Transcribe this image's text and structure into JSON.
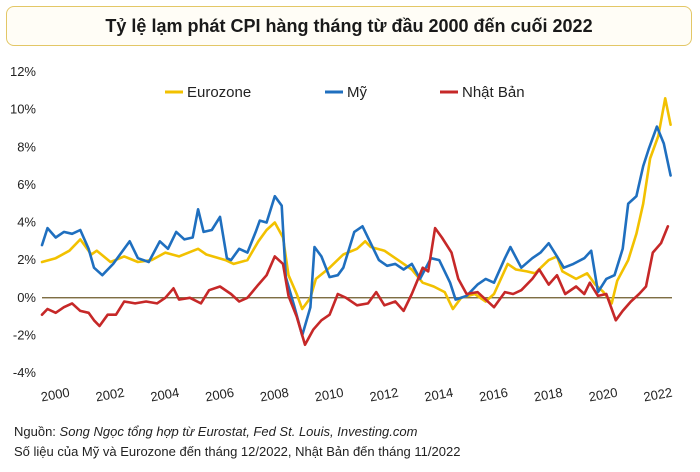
{
  "title": "Tỷ lệ lạm phát CPI hàng tháng từ đầu 2000 đến cuối 2022",
  "source_prefix": "Nguồn:",
  "source_text": "Song Ngọc tổng hợp từ Eurostat, Fed St. Louis, Investing.com",
  "note": "Số liệu của Mỹ và Eurozone đến tháng 12/2022, Nhật Bản đến tháng 11/2022",
  "chart_data": {
    "type": "line",
    "ylim": [
      -4,
      12
    ],
    "yticks": [
      "-4%",
      "-2%",
      "0%",
      "2%",
      "4%",
      "6%",
      "8%",
      "10%",
      "12%"
    ],
    "ytick_values": [
      -4,
      -2,
      0,
      2,
      4,
      6,
      8,
      10,
      12
    ],
    "xticks": [
      "2000",
      "2002",
      "2004",
      "2006",
      "2008",
      "2010",
      "2012",
      "2014",
      "2016",
      "2018",
      "2020",
      "2022"
    ],
    "xtick_values": [
      2000,
      2002,
      2004,
      2006,
      2008,
      2010,
      2012,
      2014,
      2016,
      2018,
      2020,
      2022
    ],
    "xlim": [
      2000,
      2023
    ],
    "legend_position": "top",
    "series": [
      {
        "name": "Eurozone",
        "color": "#f2c100",
        "points": [
          [
            2000,
            1.9
          ],
          [
            2000.5,
            2.1
          ],
          [
            2001,
            2.5
          ],
          [
            2001.4,
            3.1
          ],
          [
            2001.8,
            2.3
          ],
          [
            2002,
            2.5
          ],
          [
            2002.5,
            1.9
          ],
          [
            2003,
            2.2
          ],
          [
            2003.5,
            1.9
          ],
          [
            2004,
            2.0
          ],
          [
            2004.5,
            2.4
          ],
          [
            2005,
            2.2
          ],
          [
            2005.7,
            2.6
          ],
          [
            2006,
            2.3
          ],
          [
            2006.7,
            2.0
          ],
          [
            2007,
            1.8
          ],
          [
            2007.5,
            2.0
          ],
          [
            2007.9,
            3.0
          ],
          [
            2008.2,
            3.6
          ],
          [
            2008.5,
            4.0
          ],
          [
            2008.8,
            3.2
          ],
          [
            2009,
            1.2
          ],
          [
            2009.3,
            0.2
          ],
          [
            2009.5,
            -0.6
          ],
          [
            2009.8,
            0.0
          ],
          [
            2010,
            1.0
          ],
          [
            2010.5,
            1.6
          ],
          [
            2011,
            2.3
          ],
          [
            2011.5,
            2.6
          ],
          [
            2011.8,
            3.0
          ],
          [
            2012,
            2.7
          ],
          [
            2012.5,
            2.5
          ],
          [
            2013,
            2.0
          ],
          [
            2013.5,
            1.5
          ],
          [
            2013.9,
            0.8
          ],
          [
            2014.3,
            0.6
          ],
          [
            2014.7,
            0.3
          ],
          [
            2015,
            -0.6
          ],
          [
            2015.3,
            0.0
          ],
          [
            2015.8,
            0.2
          ],
          [
            2016.2,
            -0.2
          ],
          [
            2016.5,
            0.2
          ],
          [
            2017,
            1.8
          ],
          [
            2017.3,
            1.5
          ],
          [
            2017.7,
            1.4
          ],
          [
            2018,
            1.3
          ],
          [
            2018.5,
            2.0
          ],
          [
            2018.8,
            2.2
          ],
          [
            2019,
            1.4
          ],
          [
            2019.5,
            1.0
          ],
          [
            2019.9,
            1.3
          ],
          [
            2020.2,
            0.7
          ],
          [
            2020.5,
            0.3
          ],
          [
            2020.8,
            -0.3
          ],
          [
            2021,
            0.9
          ],
          [
            2021.4,
            2.0
          ],
          [
            2021.7,
            3.4
          ],
          [
            2021.95,
            5.0
          ],
          [
            2022.2,
            7.4
          ],
          [
            2022.5,
            8.6
          ],
          [
            2022.75,
            10.6
          ],
          [
            2022.95,
            9.2
          ]
        ]
      },
      {
        "name": "Mỹ",
        "color": "#1f6fbf",
        "points": [
          [
            2000,
            2.8
          ],
          [
            2000.2,
            3.7
          ],
          [
            2000.5,
            3.2
          ],
          [
            2000.8,
            3.5
          ],
          [
            2001.1,
            3.4
          ],
          [
            2001.4,
            3.6
          ],
          [
            2001.7,
            2.6
          ],
          [
            2001.9,
            1.6
          ],
          [
            2002.2,
            1.2
          ],
          [
            2002.6,
            1.8
          ],
          [
            2002.9,
            2.4
          ],
          [
            2003.2,
            3.0
          ],
          [
            2003.5,
            2.1
          ],
          [
            2003.9,
            1.9
          ],
          [
            2004.3,
            3.0
          ],
          [
            2004.6,
            2.6
          ],
          [
            2004.9,
            3.5
          ],
          [
            2005.2,
            3.1
          ],
          [
            2005.5,
            3.2
          ],
          [
            2005.7,
            4.7
          ],
          [
            2005.9,
            3.5
          ],
          [
            2006.2,
            3.6
          ],
          [
            2006.5,
            4.3
          ],
          [
            2006.75,
            2.1
          ],
          [
            2006.9,
            2.0
          ],
          [
            2007.2,
            2.6
          ],
          [
            2007.5,
            2.4
          ],
          [
            2007.8,
            3.5
          ],
          [
            2007.95,
            4.1
          ],
          [
            2008.2,
            4.0
          ],
          [
            2008.5,
            5.4
          ],
          [
            2008.75,
            4.9
          ],
          [
            2008.9,
            1.1
          ],
          [
            2009.2,
            -0.4
          ],
          [
            2009.5,
            -2.0
          ],
          [
            2009.8,
            -0.5
          ],
          [
            2009.95,
            2.7
          ],
          [
            2010.2,
            2.2
          ],
          [
            2010.5,
            1.1
          ],
          [
            2010.8,
            1.2
          ],
          [
            2011,
            1.6
          ],
          [
            2011.4,
            3.5
          ],
          [
            2011.7,
            3.8
          ],
          [
            2012,
            2.9
          ],
          [
            2012.3,
            2.0
          ],
          [
            2012.6,
            1.7
          ],
          [
            2012.9,
            1.8
          ],
          [
            2013.2,
            1.5
          ],
          [
            2013.5,
            1.8
          ],
          [
            2013.8,
            1.0
          ],
          [
            2014.2,
            2.1
          ],
          [
            2014.5,
            2.0
          ],
          [
            2014.9,
            0.8
          ],
          [
            2015.1,
            -0.1
          ],
          [
            2015.5,
            0.1
          ],
          [
            2015.9,
            0.7
          ],
          [
            2016.2,
            1.0
          ],
          [
            2016.5,
            0.8
          ],
          [
            2016.9,
            2.1
          ],
          [
            2017.1,
            2.7
          ],
          [
            2017.5,
            1.6
          ],
          [
            2017.9,
            2.1
          ],
          [
            2018.2,
            2.4
          ],
          [
            2018.5,
            2.9
          ],
          [
            2018.8,
            2.2
          ],
          [
            2019.05,
            1.6
          ],
          [
            2019.4,
            1.8
          ],
          [
            2019.8,
            2.1
          ],
          [
            2020.05,
            2.5
          ],
          [
            2020.3,
            0.3
          ],
          [
            2020.6,
            1.0
          ],
          [
            2020.9,
            1.2
          ],
          [
            2021.2,
            2.6
          ],
          [
            2021.4,
            5.0
          ],
          [
            2021.7,
            5.4
          ],
          [
            2021.95,
            7.0
          ],
          [
            2022.15,
            7.9
          ],
          [
            2022.45,
            9.1
          ],
          [
            2022.7,
            8.2
          ],
          [
            2022.95,
            6.5
          ]
        ]
      },
      {
        "name": "Nhật Bản",
        "color": "#c62828",
        "points": [
          [
            2000,
            -0.9
          ],
          [
            2000.2,
            -0.6
          ],
          [
            2000.5,
            -0.8
          ],
          [
            2000.8,
            -0.5
          ],
          [
            2001.1,
            -0.3
          ],
          [
            2001.4,
            -0.7
          ],
          [
            2001.7,
            -0.8
          ],
          [
            2001.9,
            -1.2
          ],
          [
            2002.1,
            -1.5
          ],
          [
            2002.4,
            -0.9
          ],
          [
            2002.7,
            -0.9
          ],
          [
            2003,
            -0.2
          ],
          [
            2003.4,
            -0.3
          ],
          [
            2003.8,
            -0.2
          ],
          [
            2004.2,
            -0.3
          ],
          [
            2004.5,
            0.0
          ],
          [
            2004.8,
            0.5
          ],
          [
            2005,
            -0.1
          ],
          [
            2005.4,
            0.0
          ],
          [
            2005.8,
            -0.3
          ],
          [
            2006.1,
            0.4
          ],
          [
            2006.5,
            0.6
          ],
          [
            2006.9,
            0.2
          ],
          [
            2007.2,
            -0.2
          ],
          [
            2007.5,
            0.0
          ],
          [
            2007.9,
            0.7
          ],
          [
            2008.2,
            1.2
          ],
          [
            2008.5,
            2.2
          ],
          [
            2008.8,
            1.8
          ],
          [
            2009,
            0.1
          ],
          [
            2009.3,
            -1.0
          ],
          [
            2009.6,
            -2.5
          ],
          [
            2009.9,
            -1.7
          ],
          [
            2010.2,
            -1.2
          ],
          [
            2010.5,
            -0.9
          ],
          [
            2010.8,
            0.2
          ],
          [
            2011.1,
            0.0
          ],
          [
            2011.5,
            -0.4
          ],
          [
            2011.9,
            -0.3
          ],
          [
            2012.2,
            0.3
          ],
          [
            2012.5,
            -0.4
          ],
          [
            2012.9,
            -0.2
          ],
          [
            2013.2,
            -0.7
          ],
          [
            2013.5,
            0.2
          ],
          [
            2013.9,
            1.6
          ],
          [
            2014.1,
            1.4
          ],
          [
            2014.35,
            3.7
          ],
          [
            2014.6,
            3.2
          ],
          [
            2014.95,
            2.4
          ],
          [
            2015.2,
            1.0
          ],
          [
            2015.5,
            0.2
          ],
          [
            2015.9,
            0.3
          ],
          [
            2016.2,
            -0.1
          ],
          [
            2016.5,
            -0.5
          ],
          [
            2016.9,
            0.3
          ],
          [
            2017.2,
            0.2
          ],
          [
            2017.5,
            0.4
          ],
          [
            2017.9,
            1.0
          ],
          [
            2018.15,
            1.5
          ],
          [
            2018.5,
            0.7
          ],
          [
            2018.8,
            1.2
          ],
          [
            2019.1,
            0.2
          ],
          [
            2019.5,
            0.6
          ],
          [
            2019.8,
            0.2
          ],
          [
            2020,
            0.8
          ],
          [
            2020.3,
            0.1
          ],
          [
            2020.6,
            0.2
          ],
          [
            2020.95,
            -1.2
          ],
          [
            2021.2,
            -0.7
          ],
          [
            2021.5,
            -0.2
          ],
          [
            2021.8,
            0.2
          ],
          [
            2022.05,
            0.6
          ],
          [
            2022.3,
            2.4
          ],
          [
            2022.6,
            2.9
          ],
          [
            2022.85,
            3.8
          ]
        ]
      }
    ]
  }
}
